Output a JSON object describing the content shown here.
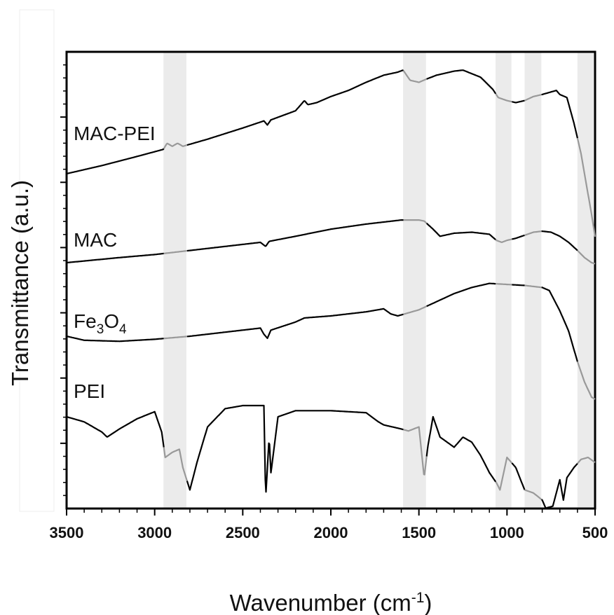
{
  "chart_data": {
    "type": "line",
    "xlabel": "Wavenumber (cm",
    "xlabel_sup": "-1",
    "xlabel_close": ")",
    "ylabel": "Transmittance (a.u.)",
    "xlim": [
      3500,
      500
    ],
    "x_reversed": true,
    "x_ticks": [
      "3500",
      "3000",
      "2500",
      "2000",
      "1500",
      "1000",
      "500"
    ],
    "y_tick_labels_shown": false,
    "grid": false,
    "line_color": "#000000",
    "highlight_color": "#ebebeb",
    "highlight_line_color": "#999999",
    "highlight_bands": [
      [
        2950,
        2820
      ],
      [
        1590,
        1460
      ],
      [
        1065,
        975
      ],
      [
        900,
        805
      ],
      [
        600,
        500
      ]
    ],
    "series": [
      {
        "name": "MAC-PEI",
        "label_parts": [
          {
            "text": "MAC-PEI"
          }
        ],
        "points": [
          [
            3500,
            0.0
          ],
          [
            3300,
            0.08
          ],
          [
            3100,
            0.17
          ],
          [
            2950,
            0.24
          ],
          [
            2930,
            0.3
          ],
          [
            2900,
            0.27
          ],
          [
            2870,
            0.3
          ],
          [
            2840,
            0.27
          ],
          [
            2700,
            0.34
          ],
          [
            2500,
            0.45
          ],
          [
            2380,
            0.52
          ],
          [
            2370,
            0.5
          ],
          [
            2360,
            0.48
          ],
          [
            2340,
            0.53
          ],
          [
            2200,
            0.62
          ],
          [
            2150,
            0.72
          ],
          [
            2130,
            0.68
          ],
          [
            2080,
            0.7
          ],
          [
            2000,
            0.76
          ],
          [
            1900,
            0.82
          ],
          [
            1800,
            0.9
          ],
          [
            1700,
            0.97
          ],
          [
            1620,
            1.0
          ],
          [
            1590,
            1.02
          ],
          [
            1550,
            0.92
          ],
          [
            1500,
            0.9
          ],
          [
            1460,
            0.93
          ],
          [
            1400,
            0.97
          ],
          [
            1300,
            1.01
          ],
          [
            1250,
            1.02
          ],
          [
            1150,
            0.95
          ],
          [
            1080,
            0.83
          ],
          [
            1050,
            0.75
          ],
          [
            1000,
            0.72
          ],
          [
            950,
            0.7
          ],
          [
            900,
            0.72
          ],
          [
            850,
            0.76
          ],
          [
            800,
            0.78
          ],
          [
            760,
            0.8
          ],
          [
            720,
            0.82
          ],
          [
            700,
            0.78
          ],
          [
            660,
            0.75
          ],
          [
            620,
            0.5
          ],
          [
            580,
            0.2
          ],
          [
            540,
            -0.2
          ],
          [
            520,
            -0.4
          ],
          [
            500,
            -0.62
          ]
        ],
        "baseline": 0.25
      },
      {
        "name": "MAC",
        "label_parts": [
          {
            "text": "MAC"
          }
        ],
        "points": [
          [
            3500,
            0.0
          ],
          [
            3200,
            0.05
          ],
          [
            3000,
            0.08
          ],
          [
            2800,
            0.12
          ],
          [
            2600,
            0.16
          ],
          [
            2400,
            0.2
          ],
          [
            2370,
            0.16
          ],
          [
            2350,
            0.21
          ],
          [
            2200,
            0.26
          ],
          [
            2000,
            0.33
          ],
          [
            1800,
            0.38
          ],
          [
            1600,
            0.42
          ],
          [
            1500,
            0.42
          ],
          [
            1470,
            0.41
          ],
          [
            1420,
            0.33
          ],
          [
            1380,
            0.26
          ],
          [
            1300,
            0.29
          ],
          [
            1200,
            0.3
          ],
          [
            1100,
            0.28
          ],
          [
            1060,
            0.22
          ],
          [
            1030,
            0.2
          ],
          [
            1000,
            0.22
          ],
          [
            950,
            0.24
          ],
          [
            900,
            0.27
          ],
          [
            850,
            0.3
          ],
          [
            800,
            0.31
          ],
          [
            750,
            0.3
          ],
          [
            700,
            0.26
          ],
          [
            650,
            0.2
          ],
          [
            600,
            0.12
          ],
          [
            560,
            0.05
          ],
          [
            520,
            0.0
          ],
          [
            500,
            -0.01
          ]
        ],
        "baseline": 0.3
      },
      {
        "name": "Fe3O4",
        "label_parts": [
          {
            "text": "Fe"
          },
          {
            "text": "3",
            "sub": true
          },
          {
            "text": "O"
          },
          {
            "text": "4",
            "sub": true
          }
        ],
        "points": [
          [
            3500,
            0.0
          ],
          [
            3400,
            -0.04
          ],
          [
            3200,
            -0.05
          ],
          [
            3000,
            -0.03
          ],
          [
            2800,
            0.0
          ],
          [
            2600,
            0.04
          ],
          [
            2400,
            0.08
          ],
          [
            2380,
            0.02
          ],
          [
            2360,
            -0.02
          ],
          [
            2340,
            0.06
          ],
          [
            2200,
            0.14
          ],
          [
            2150,
            0.18
          ],
          [
            2000,
            0.2
          ],
          [
            1800,
            0.24
          ],
          [
            1700,
            0.27
          ],
          [
            1660,
            0.22
          ],
          [
            1620,
            0.2
          ],
          [
            1500,
            0.26
          ],
          [
            1400,
            0.34
          ],
          [
            1300,
            0.42
          ],
          [
            1200,
            0.48
          ],
          [
            1100,
            0.52
          ],
          [
            1000,
            0.51
          ],
          [
            900,
            0.5
          ],
          [
            800,
            0.48
          ],
          [
            760,
            0.45
          ],
          [
            700,
            0.25
          ],
          [
            650,
            0.05
          ],
          [
            600,
            -0.25
          ],
          [
            560,
            -0.45
          ],
          [
            520,
            -0.6
          ],
          [
            500,
            -0.62
          ]
        ],
        "baseline": 0.3
      },
      {
        "name": "PEI",
        "label_parts": [
          {
            "text": "PEI"
          }
        ],
        "points": [
          [
            3500,
            0.0
          ],
          [
            3400,
            -0.05
          ],
          [
            3300,
            -0.15
          ],
          [
            3270,
            -0.2
          ],
          [
            3200,
            -0.12
          ],
          [
            3100,
            -0.02
          ],
          [
            3000,
            0.05
          ],
          [
            2960,
            -0.15
          ],
          [
            2940,
            -0.4
          ],
          [
            2900,
            -0.35
          ],
          [
            2860,
            -0.32
          ],
          [
            2840,
            -0.5
          ],
          [
            2800,
            -0.72
          ],
          [
            2760,
            -0.45
          ],
          [
            2700,
            -0.1
          ],
          [
            2600,
            0.08
          ],
          [
            2500,
            0.11
          ],
          [
            2380,
            0.11
          ],
          [
            2370,
            -0.8
          ],
          [
            2350,
            -0.2
          ],
          [
            2340,
            -0.55
          ],
          [
            2300,
            0.0
          ],
          [
            2200,
            0.06
          ],
          [
            2000,
            0.06
          ],
          [
            1800,
            0.04
          ],
          [
            1730,
            -0.05
          ],
          [
            1700,
            -0.08
          ],
          [
            1650,
            -0.1
          ],
          [
            1600,
            -0.12
          ],
          [
            1560,
            -0.14
          ],
          [
            1500,
            -0.1
          ],
          [
            1470,
            -0.6
          ],
          [
            1450,
            -0.3
          ],
          [
            1420,
            0.0
          ],
          [
            1380,
            -0.2
          ],
          [
            1300,
            -0.3
          ],
          [
            1250,
            -0.2
          ],
          [
            1200,
            -0.25
          ],
          [
            1150,
            -0.38
          ],
          [
            1100,
            -0.55
          ],
          [
            1060,
            -0.65
          ],
          [
            1040,
            -0.72
          ],
          [
            1000,
            -0.4
          ],
          [
            950,
            -0.5
          ],
          [
            900,
            -0.72
          ],
          [
            850,
            -0.75
          ],
          [
            800,
            -0.82
          ],
          [
            780,
            -0.9
          ],
          [
            740,
            -0.88
          ],
          [
            720,
            -0.75
          ],
          [
            700,
            -0.62
          ],
          [
            680,
            -0.82
          ],
          [
            660,
            -0.6
          ],
          [
            620,
            -0.5
          ],
          [
            580,
            -0.42
          ],
          [
            540,
            -0.4
          ],
          [
            500,
            -0.45
          ]
        ],
        "baseline": 0.1
      }
    ]
  }
}
